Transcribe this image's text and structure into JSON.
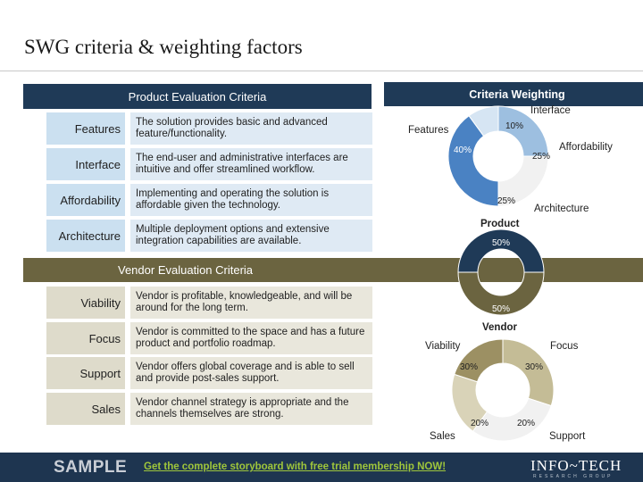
{
  "page": {
    "title": "SWG criteria & weighting factors"
  },
  "product": {
    "header": "Product Evaluation Criteria",
    "rows": [
      {
        "label": "Features",
        "desc": "The solution provides basic and advanced feature/functionality."
      },
      {
        "label": "Interface",
        "desc": "The end-user and administrative interfaces are intuitive and offer streamlined workflow."
      },
      {
        "label": "Affordability",
        "desc": "Implementing and operating the solution is affordable given the technology."
      },
      {
        "label": "Architecture",
        "desc": "Multiple deployment options and extensive integration capabilities are available."
      }
    ]
  },
  "vendor": {
    "header": "Vendor Evaluation Criteria",
    "rows": [
      {
        "label": "Viability",
        "desc": "Vendor is profitable, knowledgeable, and will be around for the long term."
      },
      {
        "label": "Focus",
        "desc": "Vendor is committed to the space and has a future product and portfolio roadmap."
      },
      {
        "label": "Support",
        "desc": "Vendor offers global coverage and is able to sell and provide post-sales support."
      },
      {
        "label": "Sales",
        "desc": "Vendor channel strategy is appropriate and the channels themselves are strong."
      }
    ]
  },
  "weighting": {
    "header": "Criteria Weighting"
  },
  "colors": {
    "navy": "#1f3a57",
    "olive": "#6b6440",
    "blue_dark": "#4a82c3",
    "blue_mid": "#9dbfe0",
    "blue_light": "#d6e5f3",
    "blue_pale": "#f1f1f1",
    "olive_dark": "#9c9063",
    "olive_mid": "#c4bc96",
    "olive_light": "#d9d3b8",
    "olive_pale": "#f1f1f1",
    "cta_green": "#9fc63b"
  },
  "chart_data": [
    {
      "type": "pie",
      "categories": [
        "Features",
        "Interface",
        "Affordability",
        "Architecture"
      ],
      "values": [
        40,
        10,
        25,
        25
      ],
      "value_labels": [
        "40%",
        "10%",
        "25%",
        "25%"
      ]
    },
    {
      "type": "pie",
      "categories": [
        "Product",
        "Vendor"
      ],
      "values": [
        50,
        50
      ],
      "value_labels": [
        "50%",
        "50%"
      ]
    },
    {
      "type": "pie",
      "categories": [
        "Viability",
        "Focus",
        "Support",
        "Sales"
      ],
      "values": [
        30,
        30,
        20,
        20
      ],
      "value_labels": [
        "30%",
        "30%",
        "20%",
        "20%"
      ]
    }
  ],
  "footer": {
    "sample": "SAMPLE",
    "cta": "Get the complete storyboard with free trial membership NOW!",
    "logo": "INFO~TECH",
    "logo_sub": "RESEARCH GROUP"
  }
}
